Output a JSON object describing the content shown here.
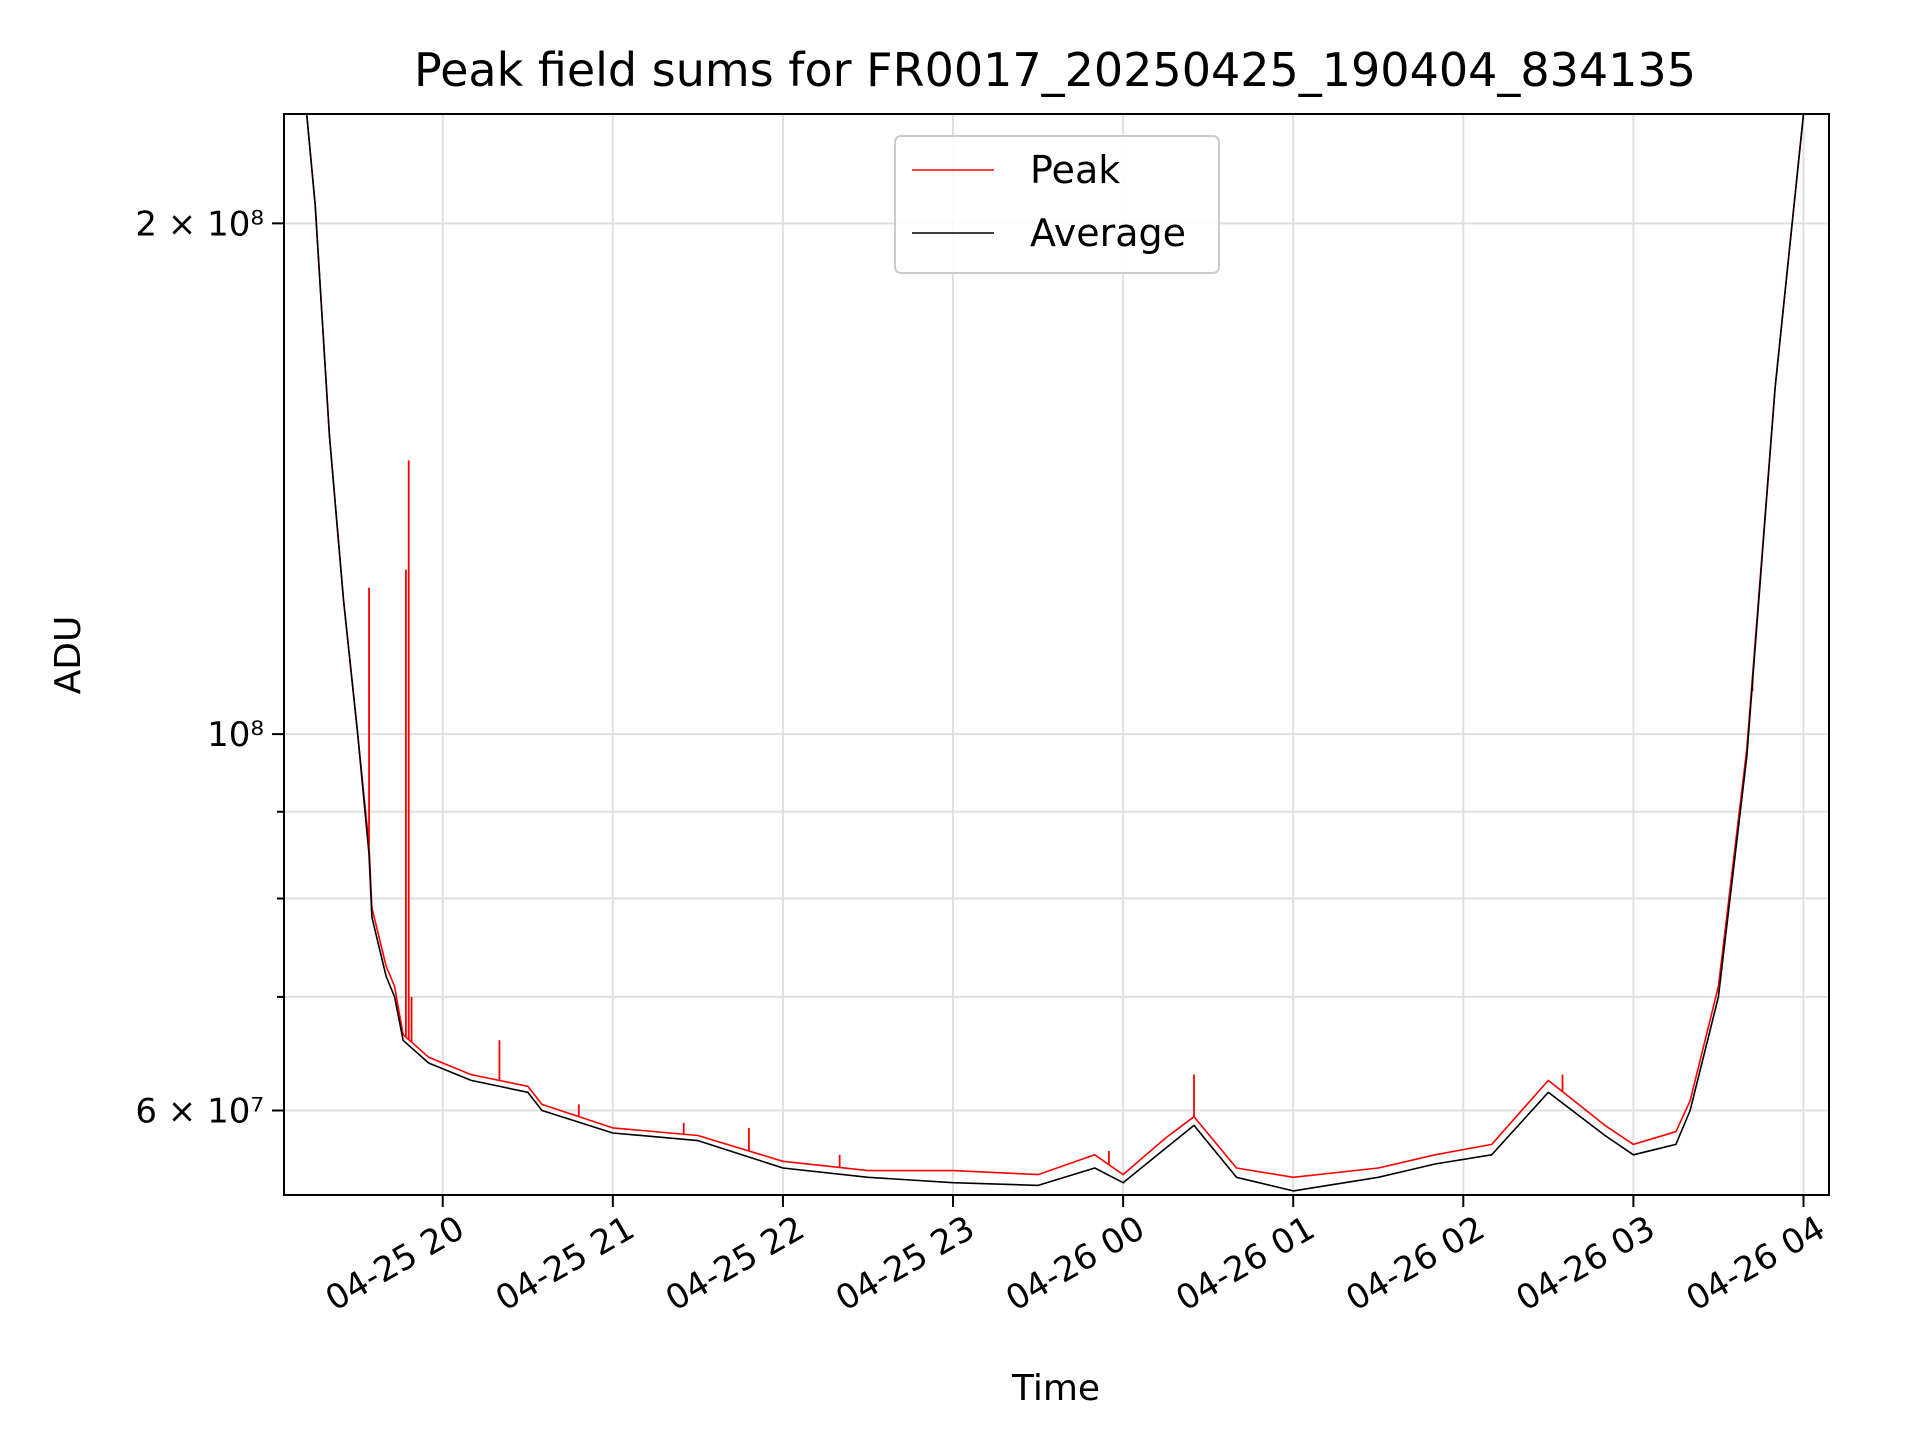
{
  "chart_data": {
    "type": "line",
    "title": "Peak field sums for FR0017_20250425_190404_834135",
    "xlabel": "Time",
    "ylabel": "ADU",
    "y_scale": "log",
    "ylim": [
      53500000,
      232000000
    ],
    "xlim": [
      "2025-04-25 19:04",
      "2025-04-26 04:09"
    ],
    "grid": true,
    "legend_position": "top-center",
    "x_ticks": [
      {
        "t": "2025-04-25 20:00",
        "label": "04-25 20"
      },
      {
        "t": "2025-04-25 21:00",
        "label": "04-25 21"
      },
      {
        "t": "2025-04-25 22:00",
        "label": "04-25 22"
      },
      {
        "t": "2025-04-25 23:00",
        "label": "04-25 23"
      },
      {
        "t": "2025-04-26 00:00",
        "label": "04-26 00"
      },
      {
        "t": "2025-04-26 01:00",
        "label": "04-26 01"
      },
      {
        "t": "2025-04-26 02:00",
        "label": "04-26 02"
      },
      {
        "t": "2025-04-26 03:00",
        "label": "04-26 03"
      },
      {
        "t": "2025-04-26 04:00",
        "label": "04-26 04"
      }
    ],
    "y_ticks": [
      {
        "value": 60000000,
        "label": "6 × 10⁷",
        "major": true
      },
      {
        "value": 70000000,
        "label": "",
        "major": false
      },
      {
        "value": 80000000,
        "label": "",
        "major": false
      },
      {
        "value": 90000000,
        "label": "",
        "major": false
      },
      {
        "value": 100000000,
        "label": "10⁸",
        "major": true
      },
      {
        "value": 200000000,
        "label": "2 × 10⁸",
        "major": true
      }
    ],
    "series": [
      {
        "name": "Average",
        "color": "#000000",
        "points": [
          [
            "2025-04-25 19:04",
            232000000
          ],
          [
            "2025-04-25 19:12",
            232000000
          ],
          [
            "2025-04-25 19:15",
            205000000
          ],
          [
            "2025-04-25 19:20",
            150000000
          ],
          [
            "2025-04-25 19:25",
            120000000
          ],
          [
            "2025-04-25 19:30",
            100000000
          ],
          [
            "2025-04-25 19:34",
            85000000
          ],
          [
            "2025-04-25 19:35",
            78000000
          ],
          [
            "2025-04-25 19:40",
            72000000
          ],
          [
            "2025-04-25 19:43",
            70000000
          ],
          [
            "2025-04-25 19:46",
            66000000
          ],
          [
            "2025-04-25 19:55",
            64000000
          ],
          [
            "2025-04-25 20:10",
            62500000
          ],
          [
            "2025-04-25 20:30",
            61500000
          ],
          [
            "2025-04-25 20:35",
            60000000
          ],
          [
            "2025-04-25 21:00",
            58200000
          ],
          [
            "2025-04-25 21:30",
            57600000
          ],
          [
            "2025-04-25 22:00",
            55500000
          ],
          [
            "2025-04-25 22:30",
            54800000
          ],
          [
            "2025-04-25 23:00",
            54400000
          ],
          [
            "2025-04-25 23:30",
            54200000
          ],
          [
            "2025-04-25 23:50",
            55500000
          ],
          [
            "2025-04-26 00:00",
            54400000
          ],
          [
            "2025-04-26 00:15",
            57000000
          ],
          [
            "2025-04-26 00:25",
            58800000
          ],
          [
            "2025-04-26 00:40",
            54800000
          ],
          [
            "2025-04-26 01:00",
            53800000
          ],
          [
            "2025-04-26 01:30",
            54800000
          ],
          [
            "2025-04-26 01:50",
            55800000
          ],
          [
            "2025-04-26 02:10",
            56500000
          ],
          [
            "2025-04-26 02:30",
            61500000
          ],
          [
            "2025-04-26 02:50",
            58000000
          ],
          [
            "2025-04-26 03:00",
            56500000
          ],
          [
            "2025-04-26 03:15",
            57300000
          ],
          [
            "2025-04-26 03:20",
            60000000
          ],
          [
            "2025-04-26 03:30",
            70000000
          ],
          [
            "2025-04-26 03:40",
            97000000
          ],
          [
            "2025-04-26 03:50",
            160000000
          ],
          [
            "2025-04-26 04:00",
            232000000
          ],
          [
            "2025-04-26 04:09",
            232000000
          ]
        ]
      },
      {
        "name": "Peak",
        "color": "#ff0000",
        "points": [
          [
            "2025-04-25 19:04",
            232000000
          ],
          [
            "2025-04-25 19:12",
            232000000
          ],
          [
            "2025-04-25 19:15",
            205000000
          ],
          [
            "2025-04-25 19:20",
            150000000
          ],
          [
            "2025-04-25 19:25",
            120000000
          ],
          [
            "2025-04-25 19:30",
            100000000
          ],
          [
            "2025-04-25 19:34",
            86000000
          ],
          [
            "2025-04-25 19:35",
            79000000
          ],
          [
            "2025-04-25 19:40",
            73000000
          ],
          [
            "2025-04-25 19:43",
            71000000
          ],
          [
            "2025-04-25 19:46",
            66500000
          ],
          [
            "2025-04-25 19:55",
            64500000
          ],
          [
            "2025-04-25 20:10",
            63000000
          ],
          [
            "2025-04-25 20:30",
            62000000
          ],
          [
            "2025-04-25 20:35",
            60500000
          ],
          [
            "2025-04-25 21:00",
            58600000
          ],
          [
            "2025-04-25 21:30",
            58000000
          ],
          [
            "2025-04-25 22:00",
            56000000
          ],
          [
            "2025-04-25 22:30",
            55300000
          ],
          [
            "2025-04-25 23:00",
            55300000
          ],
          [
            "2025-04-25 23:30",
            55000000
          ],
          [
            "2025-04-25 23:50",
            56500000
          ],
          [
            "2025-04-26 00:00",
            55000000
          ],
          [
            "2025-04-26 00:15",
            57800000
          ],
          [
            "2025-04-26 00:25",
            59500000
          ],
          [
            "2025-04-26 00:40",
            55500000
          ],
          [
            "2025-04-26 01:00",
            54800000
          ],
          [
            "2025-04-26 01:30",
            55500000
          ],
          [
            "2025-04-26 01:50",
            56500000
          ],
          [
            "2025-04-26 02:10",
            57300000
          ],
          [
            "2025-04-26 02:30",
            62500000
          ],
          [
            "2025-04-26 02:50",
            58800000
          ],
          [
            "2025-04-26 03:00",
            57300000
          ],
          [
            "2025-04-26 03:15",
            58300000
          ],
          [
            "2025-04-26 03:20",
            60800000
          ],
          [
            "2025-04-26 03:30",
            71000000
          ],
          [
            "2025-04-26 03:40",
            98000000
          ],
          [
            "2025-04-26 03:50",
            160000000
          ],
          [
            "2025-04-26 04:00",
            232000000
          ],
          [
            "2025-04-26 04:09",
            232000000
          ]
        ],
        "spikes": [
          [
            "2025-04-25 19:34",
            122000000
          ],
          [
            "2025-04-25 19:47",
            125000000
          ],
          [
            "2025-04-25 19:48",
            145000000
          ],
          [
            "2025-04-25 19:49",
            70000000
          ],
          [
            "2025-04-25 20:20",
            66000000
          ],
          [
            "2025-04-25 20:48",
            60500000
          ],
          [
            "2025-04-25 21:25",
            59000000
          ],
          [
            "2025-04-25 21:48",
            58600000
          ],
          [
            "2025-04-25 22:20",
            56500000
          ],
          [
            "2025-04-25 23:55",
            56800000
          ],
          [
            "2025-04-26 00:25",
            63000000
          ],
          [
            "2025-04-26 02:35",
            63000000
          ],
          [
            "2025-04-26 03:42",
            106000000
          ]
        ]
      }
    ]
  }
}
